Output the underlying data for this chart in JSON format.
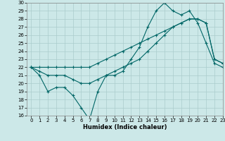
{
  "xlabel": "Humidex (Indice chaleur)",
  "bg_color": "#cce8e8",
  "line_color": "#006666",
  "grid_color": "#aacccc",
  "x": [
    0,
    1,
    2,
    3,
    4,
    5,
    6,
    7,
    8,
    9,
    10,
    11,
    12,
    13,
    14,
    15,
    16,
    17,
    18,
    19,
    20,
    21,
    22,
    23
  ],
  "line1": [
    22,
    21,
    19,
    19.5,
    19.5,
    18.5,
    17,
    15.5,
    19,
    21,
    21,
    21.5,
    23,
    24.5,
    27,
    29,
    30,
    29,
    28.5,
    29,
    27.5,
    25,
    22.5,
    22
  ],
  "line2": [
    22,
    21.5,
    21,
    21,
    21,
    20.5,
    20,
    20,
    20.5,
    21,
    21.5,
    22,
    22.5,
    23,
    24,
    25,
    26,
    27,
    27.5,
    28,
    28,
    27.5,
    23,
    22.5
  ],
  "line3": [
    22,
    22,
    22,
    22,
    22,
    22,
    22,
    22,
    22.5,
    23,
    23.5,
    24,
    24.5,
    25,
    25.5,
    26,
    26.5,
    27,
    27.5,
    28,
    28,
    27.5,
    23,
    22.5
  ],
  "ylim": [
    16,
    30
  ],
  "xlim": [
    -0.5,
    23
  ],
  "yticks": [
    16,
    17,
    18,
    19,
    20,
    21,
    22,
    23,
    24,
    25,
    26,
    27,
    28,
    29,
    30
  ],
  "xticks": [
    0,
    1,
    2,
    3,
    4,
    5,
    6,
    7,
    8,
    9,
    10,
    11,
    12,
    13,
    14,
    15,
    16,
    17,
    18,
    19,
    20,
    21,
    22,
    23
  ],
  "marker": "+",
  "markersize": 3,
  "linewidth": 0.8,
  "axis_fontsize": 6,
  "tick_fontsize": 5
}
